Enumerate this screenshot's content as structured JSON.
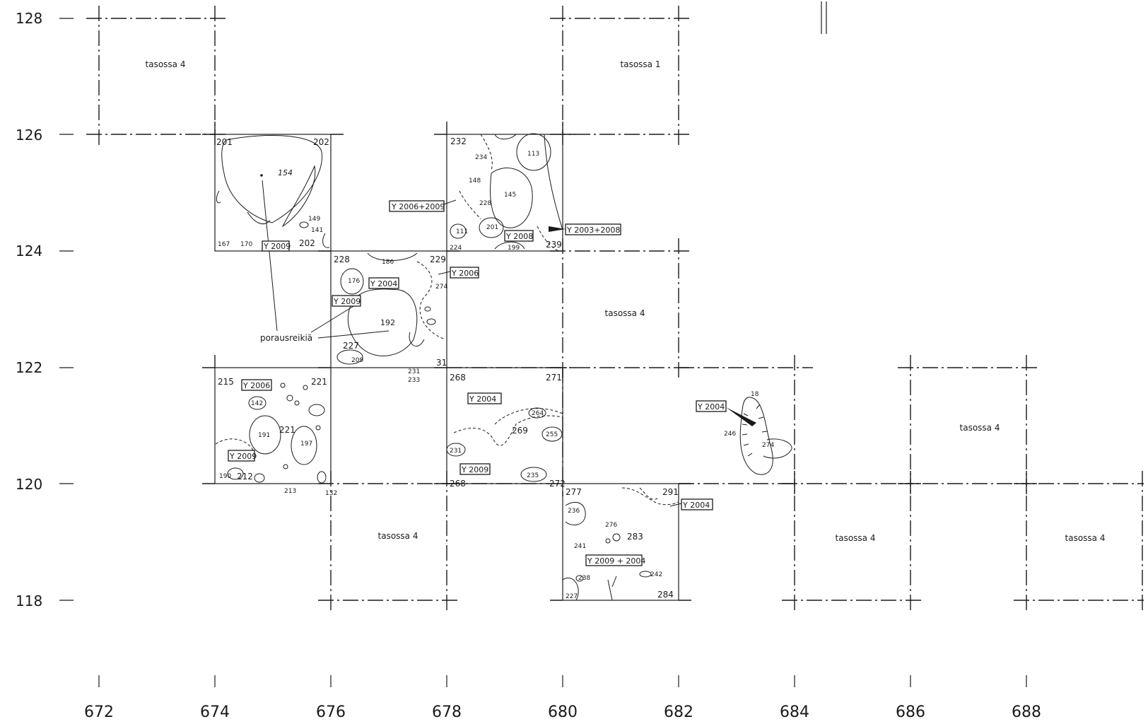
{
  "y_axis": {
    "labels": [
      {
        "text": "128",
        "value": 128
      },
      {
        "text": "126",
        "value": 126
      },
      {
        "text": "124",
        "value": 124
      },
      {
        "text": "122",
        "value": 122
      },
      {
        "text": "120",
        "value": 120
      },
      {
        "text": "118",
        "value": 118
      }
    ]
  },
  "x_axis": {
    "labels": [
      {
        "text": "672",
        "value": 672
      },
      {
        "text": "674",
        "value": 674
      },
      {
        "text": "676",
        "value": 676
      },
      {
        "text": "678",
        "value": 678
      },
      {
        "text": "680",
        "value": 680
      },
      {
        "text": "682",
        "value": 682
      },
      {
        "text": "684",
        "value": 684
      },
      {
        "text": "686",
        "value": 686
      },
      {
        "text": "688",
        "value": 688
      }
    ]
  },
  "squares": [
    {
      "x0": 672,
      "y0": 128,
      "note": "tasossa 4"
    },
    {
      "x0": 680,
      "y0": 128,
      "note": "tasossa 1"
    },
    {
      "x0": 680,
      "y0": 124,
      "note": "tasossa 4"
    },
    {
      "x0": 686,
      "y0": 122,
      "note": "tasossa 4"
    },
    {
      "x0": 676,
      "y0": 120,
      "note": "tasossa 4"
    },
    {
      "x0": 684,
      "y0": 120,
      "note": "tasossa 4"
    },
    {
      "x0": 688,
      "y0": 120,
      "note": "tasossa 4"
    }
  ],
  "annotation": {
    "label": "porausreikiä"
  },
  "sample_tags": [
    {
      "text": "Y 2006+2009"
    },
    {
      "text": "Y 2003+2008"
    },
    {
      "text": "Y 2008"
    },
    {
      "text": "Y 2009"
    },
    {
      "text": "Y 2006"
    },
    {
      "text": "Y 2004"
    },
    {
      "text": "Y 2009"
    },
    {
      "text": "Y 2006"
    },
    {
      "text": "Y 2009"
    },
    {
      "text": "Y 2004"
    },
    {
      "text": "Y 2009"
    },
    {
      "text": "Y 2004"
    },
    {
      "text": "Y 2004"
    },
    {
      "text": "Y 2009 + 2004"
    }
  ],
  "corner_numbers": [
    "201",
    "202",
    "202",
    "228",
    "229",
    "227",
    "31",
    "232",
    "239",
    "224",
    "215",
    "221",
    "221",
    "212",
    "268",
    "271",
    "269",
    "268",
    "272",
    "277",
    "291",
    "283",
    "284",
    "227"
  ],
  "feature_numbers": [
    "154",
    "145",
    "113",
    "192",
    "191",
    "197",
    "255",
    "274",
    "236",
    "233"
  ]
}
